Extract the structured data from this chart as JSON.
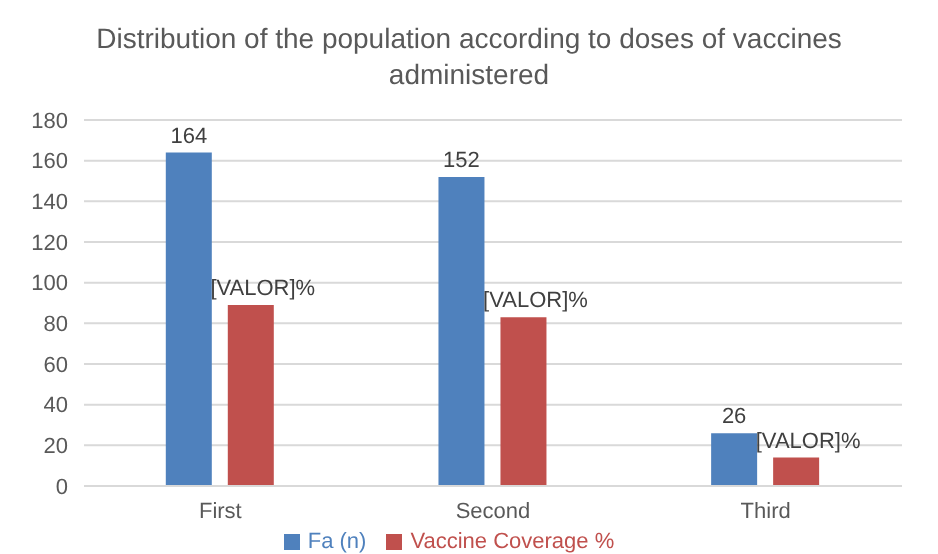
{
  "chart_data": {
    "type": "bar",
    "title": "Distribution of the population according to doses of vaccines administered",
    "categories": [
      "First",
      "Second",
      "Third"
    ],
    "series": [
      {
        "name": "Fa (n)",
        "color": "#4f81bd",
        "values": [
          164,
          152,
          26
        ],
        "value_labels": [
          "164",
          "152",
          "26"
        ]
      },
      {
        "name": "Vaccine Coverage %",
        "color": "#c0504d",
        "values": [
          89,
          83,
          14
        ],
        "value_labels": [
          "[VALOR]%",
          "[VALOR]%",
          "[VALOR]%"
        ]
      }
    ],
    "ylim": [
      0,
      180
    ],
    "yticks": [
      0,
      20,
      40,
      60,
      80,
      100,
      120,
      140,
      160,
      180
    ],
    "grid": "y",
    "legend": "bottom"
  }
}
